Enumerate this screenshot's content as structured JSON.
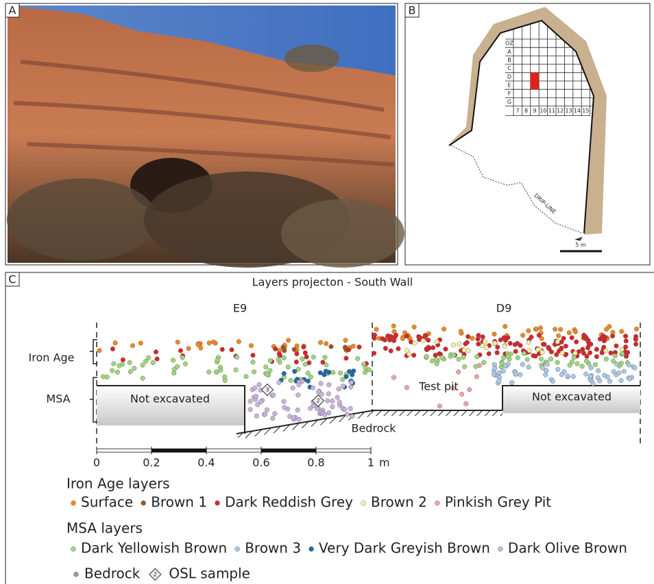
{
  "panels": {
    "a": {
      "label": "A"
    },
    "b": {
      "label": "B",
      "rows": [
        "OZ",
        "A",
        "B",
        "C",
        "D",
        "E",
        "F",
        "G"
      ],
      "columns": [
        "7",
        "8",
        "9",
        "10",
        "11",
        "12",
        "13",
        "14",
        "15"
      ],
      "drip_line": "DRIP-LINE",
      "scale": "5 m"
    },
    "c": {
      "label": "C",
      "title": "Layers projecton - South Wall",
      "squares": [
        "E9",
        "D9"
      ],
      "phases": [
        "Iron Age",
        "MSA"
      ],
      "areas": [
        "Not excavated",
        "Test pit",
        "Not excavated"
      ],
      "bedrock": "Bedrock",
      "osl_samples": [
        "3",
        "2"
      ],
      "scale": {
        "ticks": [
          0,
          0.2,
          0.4,
          0.6,
          0.8,
          1
        ],
        "unit": "m"
      }
    }
  },
  "legend": {
    "groups": [
      {
        "title": "Iron Age layers",
        "items": [
          {
            "name": "Surface",
            "color": "#f0891e"
          },
          {
            "name": "Brown 1",
            "color": "#a0522d"
          },
          {
            "name": "Dark Reddish Grey",
            "color": "#d62728"
          },
          {
            "name": "Brown 2",
            "color": "#f3f0a6"
          },
          {
            "name": "Pinkish Grey Pit",
            "color": "#f2a3a3"
          }
        ]
      },
      {
        "title": "MSA layers",
        "items": [
          {
            "name": "Dark Yellowish Brown",
            "color": "#9fd67a"
          },
          {
            "name": "Brown 3",
            "color": "#aac9e8"
          },
          {
            "name": "Very Dark Greyish Brown",
            "color": "#1f6aa5"
          },
          {
            "name": "Dark Olive Brown",
            "color": "#c9b3dd"
          }
        ]
      }
    ],
    "extra": [
      {
        "name": "Bedrock",
        "color": "#999999"
      },
      {
        "name": "OSL sample",
        "symbol": "2"
      }
    ]
  }
}
